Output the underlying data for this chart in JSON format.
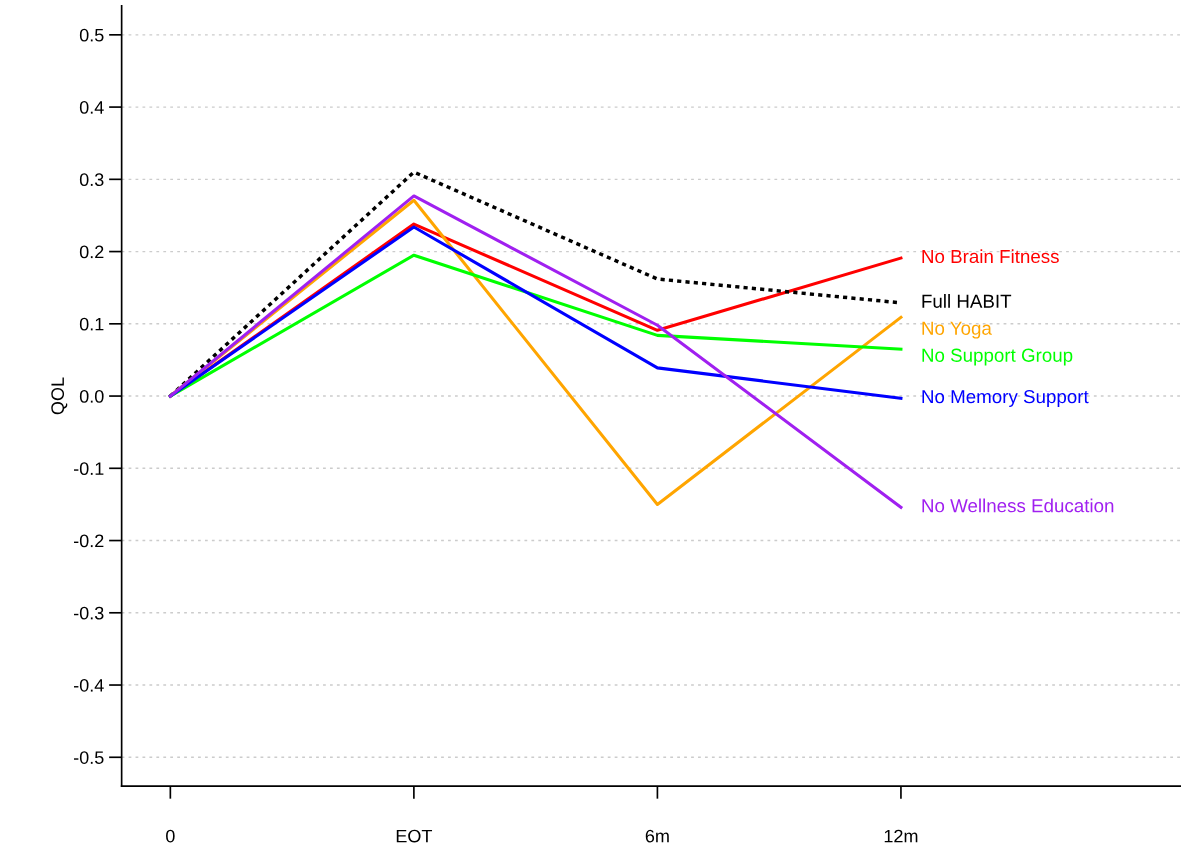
{
  "chart_data": {
    "type": "line",
    "ylabel": "QOL",
    "categories": [
      "0",
      "EOT",
      "6m",
      "12m"
    ],
    "ylim": [
      -0.54,
      0.54
    ],
    "yticks": [
      0.5,
      0.4,
      0.3,
      0.2,
      0.1,
      {
        "value": 0,
        "label": "0.0"
      },
      -0.1,
      -0.2,
      -0.3,
      -0.4,
      -0.5
    ],
    "grid": "y",
    "legend": false,
    "marker": "none",
    "line_style": "solid",
    "series": [
      {
        "name": "No Brain Fitness",
        "color": "#ff0000",
        "values": [
          0,
          0.238,
          0.091,
          0.191
        ]
      },
      {
        "name": "Full HABIT",
        "color": "#000000",
        "line_style": "dotted",
        "values": [
          0,
          0.31,
          0.162,
          0.129
        ]
      },
      {
        "name": "No Yoga",
        "color": "#ffa500",
        "values": [
          0,
          0.271,
          -0.15,
          0.109
        ]
      },
      {
        "name": "No Support Group",
        "color": "#00ff00",
        "values": [
          0,
          0.195,
          0.084,
          0.065
        ]
      },
      {
        "name": "No Memory Support",
        "color": "#0000ff",
        "values": [
          0,
          0.234,
          0.039,
          -0.003
        ]
      },
      {
        "name": "No Wellness Education",
        "color": "#a020f0",
        "values": [
          0,
          0.277,
          0.098,
          -0.154
        ]
      }
    ]
  }
}
